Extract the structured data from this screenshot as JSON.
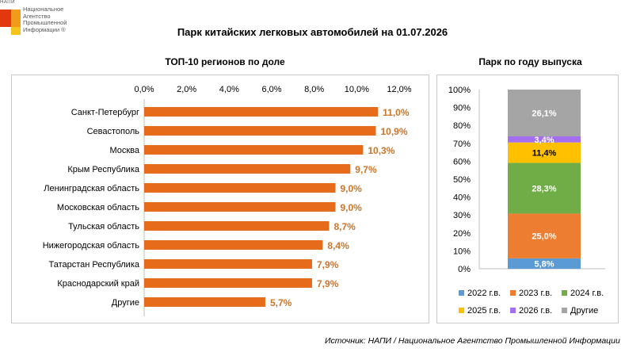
{
  "logo": {
    "abbr": "НАПИ",
    "name_lines": [
      "Национальное",
      "Агентство",
      "Промышленной",
      "Информации ®"
    ]
  },
  "title": "Парк китайских легковых автомобилей на 01.07.2026",
  "source": "Источник: НАПИ / Национальное Агентство Промышленной Информации",
  "colors": {
    "bar": "#e66c1c",
    "label": "#c9752b"
  },
  "chart_data": [
    {
      "type": "bar",
      "orientation": "horizontal",
      "title": "ТОП-10 регионов по доле",
      "xlim": [
        0,
        12
      ],
      "ticks": [
        "0,0%",
        "2,0%",
        "4,0%",
        "6,0%",
        "8,0%",
        "10,0%",
        "12,0%"
      ],
      "tick_values": [
        0,
        2,
        4,
        6,
        8,
        10,
        12
      ],
      "categories": [
        "Санкт-Петербург",
        "Севастополь",
        "Москва",
        "Крым Республика",
        "Ленинградская область",
        "Московская область",
        "Тульская область",
        "Нижегородская область",
        "Татарстан Республика",
        "Краснодарский край",
        "Другие"
      ],
      "values": [
        11.0,
        10.9,
        10.3,
        9.7,
        9.0,
        9.0,
        8.7,
        8.4,
        7.9,
        7.9,
        5.7
      ],
      "labels": [
        "11,0%",
        "10,9%",
        "10,3%",
        "9,7%",
        "9,0%",
        "9,0%",
        "8,7%",
        "8,4%",
        "7,9%",
        "7,9%",
        "5,7%"
      ],
      "grid": false
    },
    {
      "type": "bar",
      "stacked": true,
      "title": "Парк по году выпуска",
      "ylim": [
        0,
        100
      ],
      "ticks": [
        "0%",
        "10%",
        "20%",
        "30%",
        "40%",
        "50%",
        "60%",
        "70%",
        "80%",
        "90%",
        "100%"
      ],
      "tick_values": [
        0,
        10,
        20,
        30,
        40,
        50,
        60,
        70,
        80,
        90,
        100
      ],
      "series": [
        {
          "name": "2022 г.в.",
          "value": 5.8,
          "label": "5,8%",
          "color": "#5b9bd5",
          "label_color": "#ffffff"
        },
        {
          "name": "2023 г.в.",
          "value": 25.0,
          "label": "25,0%",
          "color": "#ed7d31",
          "label_color": "#ffffff"
        },
        {
          "name": "2024 г.в.",
          "value": 28.3,
          "label": "28,3%",
          "color": "#70ad47",
          "label_color": "#ffffff"
        },
        {
          "name": "2025 г.в.",
          "value": 11.4,
          "label": "11,4%",
          "color": "#ffc000",
          "label_color": "#000000"
        },
        {
          "name": "2026 г.в.",
          "value": 3.4,
          "label": "3,4%",
          "color": "#a36ef0",
          "label_color": "#ffffff"
        },
        {
          "name": "Другие",
          "value": 26.1,
          "label": "26,1%",
          "color": "#a5a5a5",
          "label_color": "#ffffff"
        }
      ],
      "legend": "bottom",
      "grid": false
    }
  ]
}
